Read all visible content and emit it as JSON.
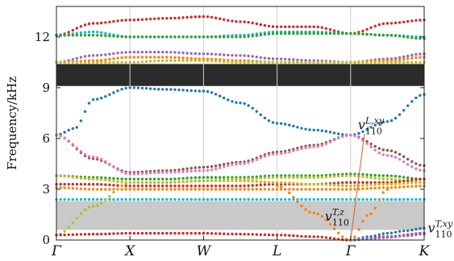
{
  "chart_data": {
    "type": "scatter",
    "title": "",
    "xlabel": "",
    "ylabel": "Frequency/kHz",
    "ylim": [
      0,
      13.8
    ],
    "x_path": [
      "Γ",
      "X",
      "W",
      "L",
      "Γ",
      "K"
    ],
    "x_path_positions": [
      0,
      1,
      2,
      3,
      4,
      5
    ],
    "y_ticks": [
      0,
      3,
      6,
      9,
      12
    ],
    "grid": "vertical lines at path points",
    "band_gaps": [
      {
        "from": 9.1,
        "to": 10.4,
        "color": "#2b2b2b"
      },
      {
        "from": 0.6,
        "to": 2.3,
        "color": "#c9c9c9"
      }
    ],
    "annotations": [
      {
        "text": "v",
        "sub": "110",
        "sup": "L,xy",
        "at_x": 4.1,
        "at_y": 6.55,
        "arrow_to": [
          4.0,
          0.0
        ]
      },
      {
        "text": "v",
        "sub": "110",
        "sup": "T,z",
        "at_x": 3.65,
        "at_y": 1.15
      },
      {
        "text": "v",
        "sub": "110",
        "sup": "T,xy",
        "at_x": 5.05,
        "at_y": 0.45
      }
    ],
    "series": [
      {
        "color": "#d62728",
        "x": [
          0,
          0.5,
          1,
          1.5,
          2,
          2.5,
          3,
          3.5,
          4,
          4.5,
          5
        ],
        "y": [
          12.1,
          12.8,
          13.0,
          13.1,
          13.2,
          12.9,
          12.6,
          12.6,
          12.2,
          12.8,
          13.0
        ]
      },
      {
        "color": "#17becf",
        "x": [
          0,
          0.5,
          1,
          1.5,
          2,
          2.5,
          3,
          3.5,
          4,
          4.5,
          5
        ],
        "y": [
          12.1,
          12.3,
          12.0,
          12.0,
          12.0,
          12.1,
          12.3,
          12.3,
          12.2,
          12.1,
          12.0
        ]
      },
      {
        "color": "#2ca02c",
        "x": [
          0,
          0.5,
          1,
          1.5,
          2,
          2.5,
          3,
          3.5,
          4,
          4.5,
          5
        ],
        "y": [
          12.1,
          12.1,
          12.0,
          12.0,
          12.0,
          12.0,
          12.2,
          12.2,
          12.2,
          12.1,
          11.9
        ]
      },
      {
        "color": "#9467bd",
        "x": [
          0,
          0.5,
          1,
          1.5,
          2,
          2.5,
          3,
          3.5,
          4,
          4.5,
          5
        ],
        "y": [
          10.5,
          10.9,
          11.1,
          11.1,
          11.0,
          10.9,
          10.7,
          10.6,
          10.5,
          10.7,
          11.0
        ]
      },
      {
        "color": "#ff7f0e",
        "x": [
          0,
          0.5,
          1,
          1.5,
          2,
          2.5,
          3,
          3.5,
          4,
          4.5,
          5
        ],
        "y": [
          10.5,
          10.6,
          10.8,
          10.8,
          10.7,
          10.6,
          10.5,
          10.5,
          10.5,
          10.6,
          10.8
        ]
      },
      {
        "color": "#bcbd22",
        "x": [
          0,
          0.5,
          1,
          1.5,
          2,
          2.5,
          3,
          3.5,
          4,
          4.5,
          5
        ],
        "y": [
          10.5,
          10.5,
          10.5,
          10.6,
          10.6,
          10.5,
          10.5,
          10.5,
          10.5,
          10.5,
          10.5
        ]
      },
      {
        "color": "#1f77b4",
        "x": [
          0,
          0.25,
          0.5,
          1,
          1.5,
          2,
          2.5,
          3,
          3.5,
          4,
          4.5,
          5
        ],
        "y": [
          6.2,
          6.6,
          8.3,
          9.0,
          8.9,
          8.8,
          8.1,
          6.9,
          6.5,
          6.2,
          7.0,
          8.6
        ]
      },
      {
        "color": "#8c564b",
        "x": [
          0,
          0.5,
          1,
          1.5,
          2,
          2.5,
          3,
          3.5,
          4,
          4.5,
          5
        ],
        "y": [
          6.2,
          4.8,
          4.0,
          4.1,
          4.3,
          4.6,
          5.2,
          5.6,
          6.2,
          5.3,
          4.4
        ]
      },
      {
        "color": "#e377c2",
        "x": [
          0,
          0.5,
          1,
          1.5,
          2,
          2.5,
          3,
          3.5,
          4,
          4.5,
          5
        ],
        "y": [
          6.2,
          4.9,
          3.9,
          4.0,
          4.1,
          4.5,
          5.1,
          5.5,
          6.2,
          5.0,
          4.1
        ]
      },
      {
        "color": "#2ca02c",
        "x": [
          0,
          0.5,
          1,
          1.5,
          2,
          2.5,
          3,
          3.5,
          4,
          4.5,
          5
        ],
        "y": [
          3.8,
          3.7,
          3.6,
          3.6,
          3.7,
          3.7,
          3.8,
          3.8,
          3.9,
          3.8,
          3.6
        ]
      },
      {
        "color": "#bcbd22",
        "x": [
          0,
          0.5,
          1,
          1.5,
          2,
          2.5,
          3,
          3.5,
          4,
          4.5,
          5
        ],
        "y": [
          3.8,
          3.6,
          3.4,
          3.4,
          3.5,
          3.6,
          3.7,
          3.7,
          3.8,
          3.6,
          3.4
        ]
      },
      {
        "color": "#d62728",
        "x": [
          0,
          0.5,
          1,
          1.5,
          2,
          2.5,
          3,
          3.5,
          4,
          4.5,
          5
        ],
        "y": [
          3.3,
          3.3,
          3.2,
          3.2,
          3.2,
          3.2,
          3.3,
          3.3,
          3.4,
          3.4,
          3.6
        ]
      },
      {
        "color": "#ff7f0e",
        "x": [
          0,
          0.5,
          1,
          1.5,
          2,
          2.5,
          3,
          3.5,
          4,
          4.5,
          5
        ],
        "y": [
          3.1,
          3.0,
          3.0,
          3.0,
          3.0,
          3.0,
          3.0,
          3.0,
          3.0,
          3.1,
          3.2
        ]
      },
      {
        "color": "#17becf",
        "x": [
          0,
          0.5,
          1,
          1.5,
          2,
          2.5,
          3,
          3.5,
          4,
          4.5,
          5
        ],
        "y": [
          2.4,
          2.4,
          2.4,
          2.4,
          2.4,
          2.4,
          2.4,
          2.4,
          2.4,
          2.4,
          2.4
        ]
      },
      {
        "color": "#bcbd22",
        "x": [
          0,
          0.5,
          1,
          1.5,
          2,
          2.5,
          3,
          3.5,
          4,
          4.5,
          5
        ],
        "y": [
          0.3,
          2.0,
          3.4,
          3.4,
          3.5,
          3.5,
          3.4,
          3.3,
          3.2,
          3.3,
          3.4
        ]
      },
      {
        "color": "#d62728",
        "x": [
          0,
          0.5,
          1,
          1.5,
          2,
          2.5,
          3,
          3.5,
          4,
          4.5,
          5
        ],
        "y": [
          0.3,
          0.35,
          0.4,
          0.4,
          0.4,
          0.35,
          0.3,
          0.2,
          0.0,
          0.2,
          0.4
        ]
      },
      {
        "color": "#1f77b4",
        "x": [
          4,
          4.25,
          4.5,
          4.75,
          5
        ],
        "y": [
          0.0,
          0.2,
          0.4,
          0.55,
          0.7
        ]
      },
      {
        "color": "#9467bd",
        "x": [
          4,
          4.25,
          4.5,
          4.75,
          5
        ],
        "y": [
          0.0,
          0.08,
          0.15,
          0.25,
          0.35
        ]
      },
      {
        "color": "#ff7f0e",
        "x": [
          3,
          3.5,
          4,
          4.25,
          4.5
        ],
        "y": [
          3.2,
          1.6,
          0.0,
          1.5,
          3.0
        ]
      }
    ]
  }
}
